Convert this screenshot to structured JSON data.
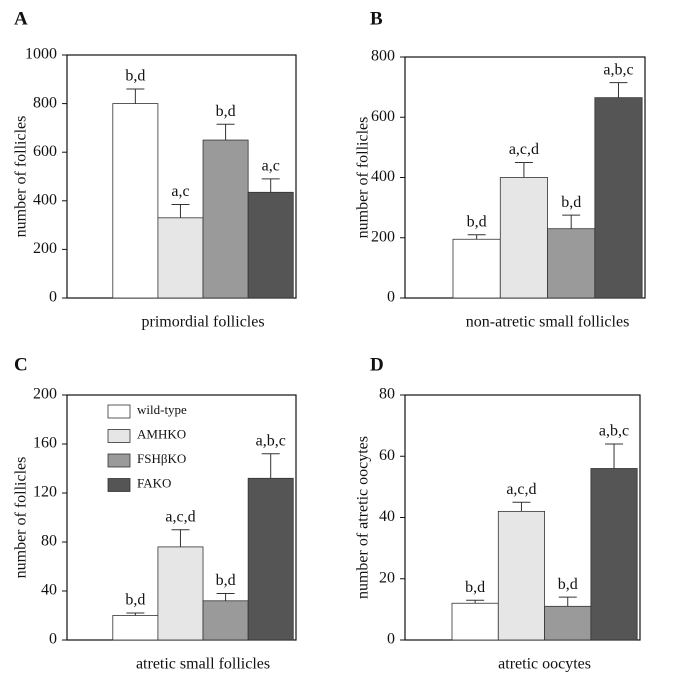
{
  "chart_data": [
    {
      "type": "bar",
      "panel": "A",
      "xlabel": "primordial follicles",
      "ylabel": "number of follicles",
      "ylim": [
        0,
        1000
      ],
      "yticks": [
        0,
        200,
        400,
        600,
        800,
        1000
      ],
      "values": [
        800,
        330,
        650,
        435
      ],
      "errors": [
        60,
        55,
        65,
        55
      ],
      "annotations": [
        "b,d",
        "a,c",
        "b,d",
        "a,c"
      ],
      "colors": [
        "#ffffff",
        "#e6e6e6",
        "#9a9a9a",
        "#555555"
      ]
    },
    {
      "type": "bar",
      "panel": "B",
      "xlabel": "non-atretic small follicles",
      "ylabel": "number of follicles",
      "ylim": [
        0,
        800
      ],
      "yticks": [
        0,
        200,
        400,
        600,
        800
      ],
      "values": [
        195,
        400,
        230,
        665
      ],
      "errors": [
        15,
        50,
        45,
        50
      ],
      "annotations": [
        "b,d",
        "a,c,d",
        "b,d",
        "a,b,c"
      ],
      "colors": [
        "#ffffff",
        "#e6e6e6",
        "#9a9a9a",
        "#555555"
      ]
    },
    {
      "type": "bar",
      "panel": "C",
      "xlabel": "atretic small follicles",
      "ylabel": "number of follicles",
      "ylim": [
        0,
        200
      ],
      "yticks": [
        0,
        40,
        80,
        120,
        160,
        200
      ],
      "values": [
        20,
        76,
        32,
        132
      ],
      "errors": [
        2,
        14,
        6,
        20
      ],
      "annotations": [
        "b,d",
        "a,c,d",
        "b,d",
        "a,b,c"
      ],
      "colors": [
        "#ffffff",
        "#e6e6e6",
        "#9a9a9a",
        "#555555"
      ],
      "legend": [
        "wild-type",
        "AMHKO",
        "FSHβKO",
        "FAKO"
      ]
    },
    {
      "type": "bar",
      "panel": "D",
      "xlabel": "atretic oocytes",
      "ylabel": "number of atretic oocytes",
      "ylim": [
        0,
        80
      ],
      "yticks": [
        0,
        20,
        40,
        60,
        80
      ],
      "values": [
        12,
        42,
        11,
        56
      ],
      "errors": [
        1,
        3,
        3,
        8
      ],
      "annotations": [
        "b,d",
        "a,c,d",
        "b,d",
        "a,b,c"
      ],
      "colors": [
        "#ffffff",
        "#e6e6e6",
        "#9a9a9a",
        "#555555"
      ]
    }
  ]
}
